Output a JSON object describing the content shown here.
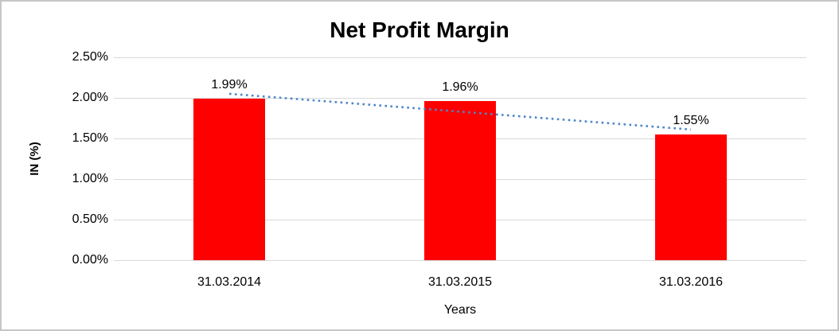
{
  "chart_data": {
    "type": "bar",
    "title": "Net Profit Margin",
    "xlabel": "Years",
    "ylabel": "IN (%)",
    "categories": [
      "31.03.2014",
      "31.03.2015",
      "31.03.2016"
    ],
    "values": [
      1.99,
      1.96,
      1.55
    ],
    "data_labels": [
      "1.99%",
      "1.96%",
      "1.55%"
    ],
    "ylim": [
      0,
      2.5
    ],
    "ytick_step": 0.5,
    "ytick_labels": [
      "0.00%",
      "0.50%",
      "1.00%",
      "1.50%",
      "2.00%",
      "2.50%"
    ],
    "grid": true,
    "legend": "none",
    "bar_color": "#ff0000",
    "gridline_color": "#d9d9d9",
    "text_color": "#000000",
    "trendline": {
      "type": "linear",
      "style": "dotted",
      "color": "#4e86c6",
      "start_value": 2.05,
      "end_value": 1.61
    }
  }
}
